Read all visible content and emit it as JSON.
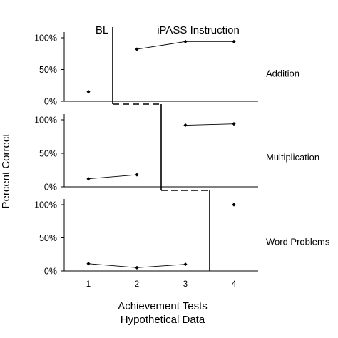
{
  "chart_data": {
    "type": "scatter",
    "design": "multiple-baseline",
    "x_ticks": [
      1,
      2,
      3,
      4
    ],
    "xlim": [
      0.5,
      4.5
    ],
    "ylim": [
      0,
      100
    ],
    "y_ticks": [
      "0%",
      "50%",
      "100%"
    ],
    "ylabel": "Percent Correct",
    "xlabel": "Achievement Tests",
    "xlabel_2": "Hypothetical Data",
    "phase_labels": [
      "BL",
      "iPASS Instruction"
    ],
    "panels": [
      {
        "label": "Addition",
        "phase_change_after_x": 1.5,
        "points": [
          {
            "x": 1,
            "y": 15,
            "connected_to_next": false
          },
          {
            "x": 2,
            "y": 82,
            "connected_to_next": true
          },
          {
            "x": 3,
            "y": 94,
            "connected_to_next": true
          },
          {
            "x": 4,
            "y": 94,
            "connected_to_next": false
          }
        ]
      },
      {
        "label": "Multiplication",
        "phase_change_after_x": 2.5,
        "points": [
          {
            "x": 1,
            "y": 12,
            "connected_to_next": true
          },
          {
            "x": 2,
            "y": 18,
            "connected_to_next": false
          },
          {
            "x": 3,
            "y": 92,
            "connected_to_next": true
          },
          {
            "x": 4,
            "y": 94,
            "connected_to_next": false
          }
        ]
      },
      {
        "label": "Word Problems",
        "phase_change_after_x": 3.5,
        "points": [
          {
            "x": 1,
            "y": 11,
            "connected_to_next": true
          },
          {
            "x": 2,
            "y": 5,
            "connected_to_next": true
          },
          {
            "x": 3,
            "y": 10,
            "connected_to_next": false
          },
          {
            "x": 4,
            "y": 100,
            "connected_to_next": false
          }
        ]
      }
    ]
  }
}
